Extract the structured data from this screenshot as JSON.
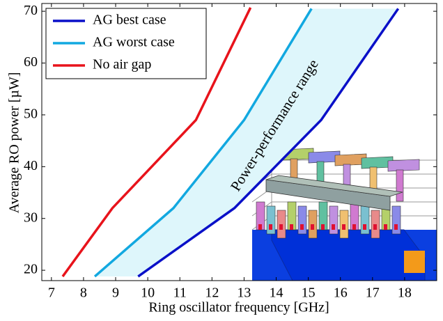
{
  "chart_data": {
    "type": "line",
    "x_label": "Ring oscillator frequency [GHz]",
    "y_label": "Average RO power [µW]",
    "annotation": "Power-performance range",
    "annotation_color": "#1a9bc4",
    "band_fill": "#def6fb",
    "series": [
      {
        "name": "AG best case",
        "color": "#0a10c8",
        "x": [
          9.7,
          12.7,
          15.4,
          17.8
        ],
        "values": [
          18.8,
          32,
          49,
          70.5
        ]
      },
      {
        "name": "AG worst case",
        "color": "#12a8e0",
        "x": [
          8.35,
          10.8,
          13.0,
          15.1
        ],
        "values": [
          18.8,
          32,
          49,
          70.5
        ]
      },
      {
        "name": "No air gap",
        "color": "#e8131b",
        "x": [
          7.35,
          8.9,
          11.5,
          13.2
        ],
        "values": [
          18.8,
          32,
          49,
          70.7
        ]
      }
    ],
    "xlim": [
      6.7,
      19
    ],
    "xticks": [
      7,
      8,
      9,
      10,
      11,
      12,
      13,
      14,
      15,
      16,
      17,
      18
    ],
    "ylim": [
      18,
      71.5
    ],
    "yticks": [
      20,
      30,
      40,
      50,
      60,
      70
    ],
    "legend": "top-left"
  }
}
